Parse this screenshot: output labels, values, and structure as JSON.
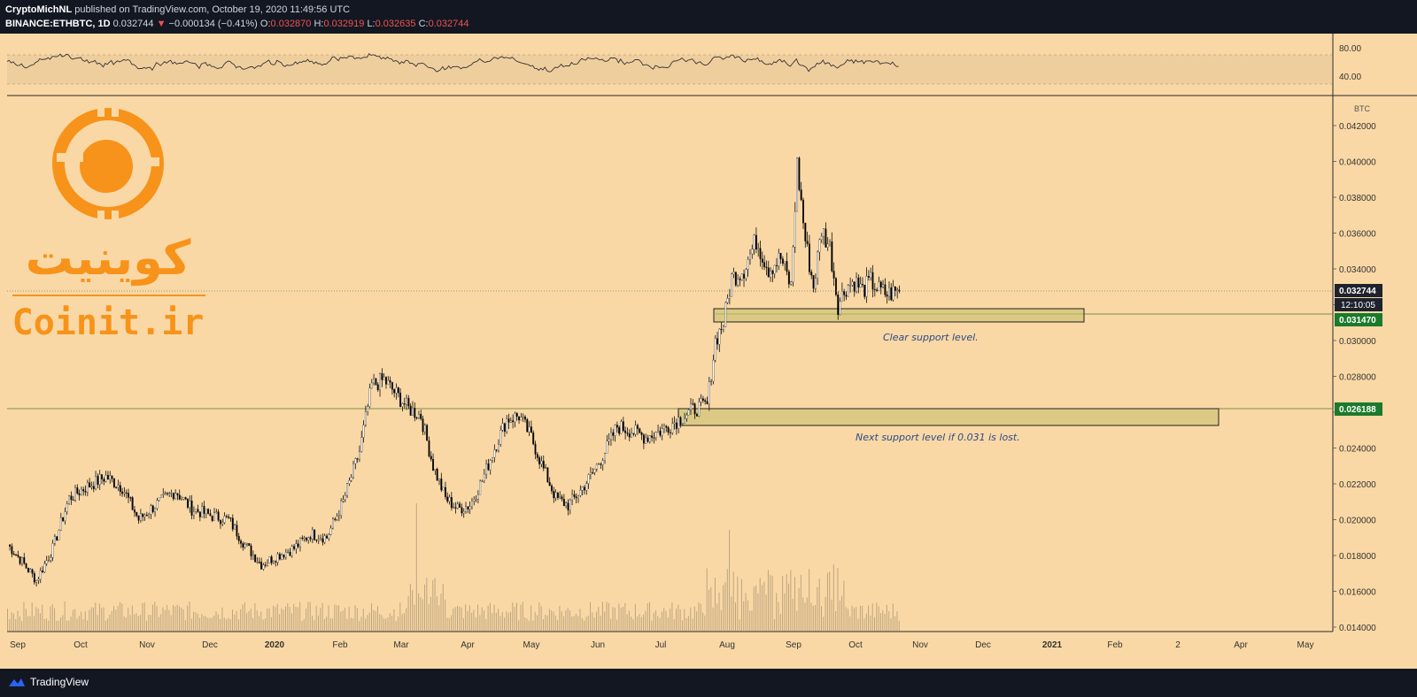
{
  "header": {
    "author": "CryptoMichNL",
    "published": "published on TradingView.com, October 19, 2020 11:49:56 UTC",
    "symbol": "BINANCE:ETHBTC, 1D",
    "last": "0.032744",
    "change_arrow": "▼",
    "change": "−0.000134 (−0.41%)",
    "o_label": "O:",
    "o_value": "0.032870",
    "h_label": "H:",
    "h_value": "0.032919",
    "l_label": "L:",
    "l_value": "0.032635",
    "c_label": "C:",
    "c_value": "0.032744"
  },
  "watermark": {
    "persian": "کوینیت",
    "latin": "Coinit.ir",
    "color": "#f7931a"
  },
  "annotations": {
    "support1": "Clear support level.",
    "support2": "Next support level if 0.031 is lost."
  },
  "price_axis": {
    "unit": "BTC",
    "current_price": "0.032744",
    "countdown": "12:10:05",
    "support1_price": "0.031470",
    "support2_price": "0.026188"
  },
  "rsi_axis": [
    "80.00",
    "40.00"
  ],
  "footer": {
    "brand": "TradingView",
    "logo_icon": "tradingview-logo-icon"
  },
  "colors": {
    "background": "#fad8a5",
    "candle_up": "#ffffff",
    "candle_down": "#000000",
    "support_zone": "#c8c26e",
    "support_green": "#1b7a2b",
    "text_blue": "#2a4a8a"
  },
  "chart_data": {
    "type": "candlestick",
    "symbol": "ETHBTC",
    "interval": "1D",
    "ylim": [
      0.0138,
      0.0432
    ],
    "y_ticks": [
      "0.042000",
      "0.040000",
      "0.038000",
      "0.036000",
      "0.034000",
      "0.032000",
      "0.030000",
      "0.028000",
      "0.026000",
      "0.024000",
      "0.022000",
      "0.020000",
      "0.018000",
      "0.016000",
      "0.014000"
    ],
    "x_ticks": [
      "Sep",
      "Oct",
      "Nov",
      "Dec",
      "2020",
      "Feb",
      "Mar",
      "Apr",
      "May",
      "Jun",
      "Jul",
      "Aug",
      "Sep",
      "Oct",
      "Nov",
      "Dec",
      "2021",
      "Feb",
      "2",
      "Apr",
      "May"
    ],
    "start": "2019-08-26",
    "close_path": [
      [
        0,
        0.0186
      ],
      [
        6,
        0.0178
      ],
      [
        14,
        0.0166
      ],
      [
        22,
        0.0184
      ],
      [
        30,
        0.0212
      ],
      [
        38,
        0.0218
      ],
      [
        48,
        0.0224
      ],
      [
        56,
        0.0218
      ],
      [
        64,
        0.02
      ],
      [
        72,
        0.0208
      ],
      [
        82,
        0.0216
      ],
      [
        90,
        0.0206
      ],
      [
        100,
        0.0202
      ],
      [
        108,
        0.02
      ],
      [
        116,
        0.0186
      ],
      [
        124,
        0.0175
      ],
      [
        132,
        0.018
      ],
      [
        140,
        0.0184
      ],
      [
        148,
        0.0192
      ],
      [
        156,
        0.019
      ],
      [
        164,
        0.021
      ],
      [
        172,
        0.0238
      ],
      [
        178,
        0.0275
      ],
      [
        184,
        0.0278
      ],
      [
        190,
        0.027
      ],
      [
        196,
        0.0262
      ],
      [
        202,
        0.0258
      ],
      [
        208,
        0.023
      ],
      [
        214,
        0.0212
      ],
      [
        220,
        0.0206
      ],
      [
        226,
        0.0208
      ],
      [
        232,
        0.0222
      ],
      [
        238,
        0.024
      ],
      [
        244,
        0.0256
      ],
      [
        250,
        0.0258
      ],
      [
        256,
        0.0246
      ],
      [
        262,
        0.0228
      ],
      [
        268,
        0.0212
      ],
      [
        274,
        0.0208
      ],
      [
        280,
        0.0216
      ],
      [
        286,
        0.0226
      ],
      [
        292,
        0.0238
      ],
      [
        298,
        0.0252
      ],
      [
        304,
        0.025
      ],
      [
        312,
        0.0246
      ],
      [
        320,
        0.025
      ],
      [
        328,
        0.0256
      ],
      [
        336,
        0.0262
      ],
      [
        342,
        0.0264
      ],
      [
        346,
        0.03
      ],
      [
        350,
        0.031
      ],
      [
        354,
        0.0335
      ],
      [
        360,
        0.034
      ],
      [
        366,
        0.0356
      ],
      [
        372,
        0.034
      ],
      [
        378,
        0.0346
      ],
      [
        383,
        0.033
      ],
      [
        386,
        0.0398
      ],
      [
        390,
        0.0356
      ],
      [
        394,
        0.033
      ],
      [
        398,
        0.0362
      ],
      [
        402,
        0.0352
      ],
      [
        406,
        0.032
      ],
      [
        410,
        0.033
      ],
      [
        414,
        0.0333
      ],
      [
        418,
        0.0328
      ],
      [
        422,
        0.0333
      ],
      [
        426,
        0.0328
      ],
      [
        430,
        0.0326
      ],
      [
        436,
        0.03274
      ]
    ],
    "volume_note": "volume histogram along bottom; spikes in mid-March 2020 and Aug-Sep 2020",
    "rsi_range": [
      0,
      100
    ],
    "rsi_levels": [
      70,
      30
    ],
    "support_zones": [
      {
        "label": "Clear support level.",
        "from": "2020-07-26",
        "to": "2021-01-17",
        "low": 0.0311,
        "high": 0.0318,
        "line": 0.03147
      },
      {
        "label": "Next support level if 0.031 is lost.",
        "from": "2020-07-10",
        "to": "2021-03-20",
        "low": 0.0254,
        "high": 0.0263,
        "line": 0.026188
      }
    ],
    "last_price": 0.032744
  }
}
